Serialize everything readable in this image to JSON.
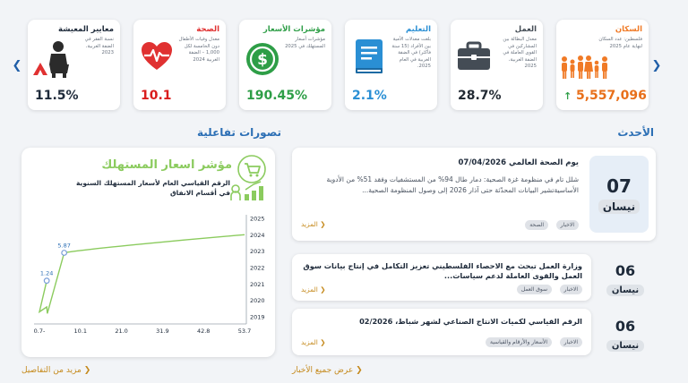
{
  "stats": [
    {
      "title": "السكان",
      "desc": "فلسطين: عدد السكان لنهاية عام 2025",
      "value": "5,557,096",
      "color": "#f07a26",
      "value_color": "#e86f1a",
      "trend": "↑",
      "icon": "people-icon"
    },
    {
      "title": "العمل",
      "desc": "معدل البطالة بين المشاركين في القوى العاملة في الضفة الغربية، 2025",
      "value": "28.7%",
      "color": "#444c55",
      "value_color": "#222a33",
      "icon": "briefcase-icon"
    },
    {
      "title": "التعليم",
      "desc": "بلغت معدلات الأمية بين الأفراد (15 سنة فأكثر) في الضفة الغربية في العام 2025.",
      "value": "2.1%",
      "color": "#2a8fd4",
      "value_color": "#2a8fd4",
      "icon": "book-icon"
    },
    {
      "title": "مؤشرات الأسعار",
      "desc": "مؤشرات أسعار المستهلك في 2025",
      "value": "190.45%",
      "color": "#2e9e47",
      "value_color": "#2e9e47",
      "icon": "dollar-icon"
    },
    {
      "title": "الصحة",
      "desc": "معدل وفيات الأطفال دون الخامسة لكل 1,000 – الضفة الغربية 2024",
      "value": "10.1",
      "color": "#e03131",
      "value_color": "#d91c1c",
      "icon": "heart-pulse-icon"
    },
    {
      "title": "معايير المعيشة",
      "desc": "نسبة الفقر في الضفة الغربية، 2023",
      "value": "11.5%",
      "color": "#1e2a3a",
      "value_color": "#1e2a3a",
      "icon": "poverty-icon"
    }
  ],
  "sections": {
    "latest": "الأحدث",
    "interactive": "تصورات تفاعلية"
  },
  "chart": {
    "header_title": "مؤشر اسعار المستهلك",
    "subtitle": "الرقم القياسي العام لأسعار المستهلك السنوية في أقسام الانفاق",
    "more": "مزيد من التفاصيل",
    "point_labels": [
      "5.87",
      "1.24"
    ]
  },
  "chart_data": {
    "type": "line",
    "title": "مؤشر اسعار المستهلك",
    "x_ticks": [
      "0.7-",
      "10.1",
      "21.0",
      "31.9",
      "42.8",
      "53.7"
    ],
    "y_ticks": [
      "2019",
      "2020",
      "2021",
      "2022",
      "2023",
      "2024",
      "2025"
    ],
    "xlim": [
      -0.7,
      53.7
    ],
    "ylim": [
      2019,
      2025
    ],
    "points": [
      [
        1.24,
        2021.2
      ],
      [
        -0.7,
        2019.3
      ],
      [
        1.24,
        2019.6
      ],
      [
        1.4,
        2019.2
      ],
      [
        5.87,
        2022.9
      ],
      [
        53.7,
        2024.0
      ]
    ],
    "labeled_points": [
      {
        "x": 5.87,
        "y": 2022.9,
        "label": "5.87"
      },
      {
        "x": 1.24,
        "y": 2021.2,
        "label": "1.24"
      }
    ],
    "color": "#8bcb5e",
    "grid": false
  },
  "news": [
    {
      "day": "07",
      "month": "نيسان",
      "title": "يوم الصحة العالمي 07/04/2026",
      "body": "شلل تام في منظومة غزة الصحية: دمار طال 94% من المستشفيات وفقد 51% من الأدوية الأساسيةتشير البيانات المحدّثة حتى آذار 2026 إلى وصول المنظومة الصحية...",
      "tags": [
        "الاخبار",
        "الصحة"
      ],
      "more": "المزيد"
    },
    {
      "day": "06",
      "month": "نيسان",
      "title": "وزارة العمل تبحث مع الاحصاء الفلسطيني تعزيز التكامل في إنتاج بيانات سوق العمل والقوى العاملة لدعم سياسات...",
      "tags": [
        "الاخبار",
        "سوق العمل"
      ],
      "more": "المزيد"
    },
    {
      "day": "06",
      "month": "نيسان",
      "title": "الرقم القياسي لكميات الانتاج الصناعي لشهر شباط، 02/2026",
      "tags": [
        "الاخبار",
        "الأسعار والأرقام والقياسية"
      ],
      "more": "المزيد"
    }
  ],
  "footer": {
    "all_news": "عرض جميع الأخبار"
  }
}
